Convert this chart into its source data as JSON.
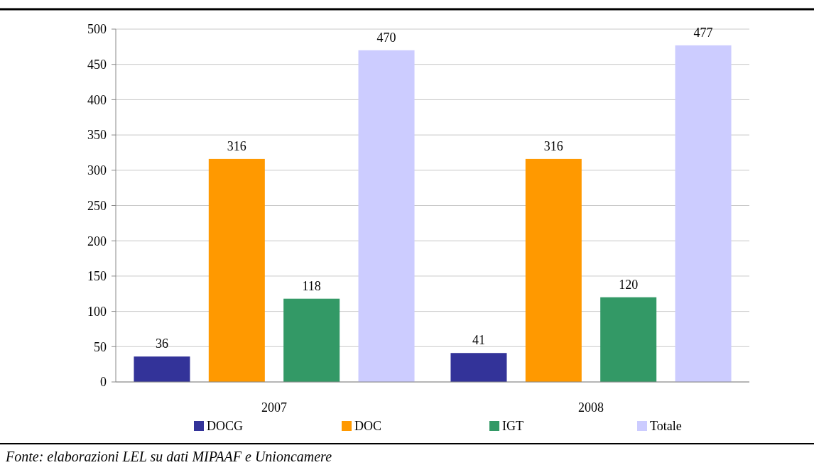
{
  "chart_data": {
    "type": "bar",
    "categories": [
      "2007",
      "2008"
    ],
    "series": [
      {
        "name": "DOCG",
        "color": "#333399",
        "values": [
          36,
          41
        ]
      },
      {
        "name": "DOC",
        "color": "#ff9900",
        "values": [
          316,
          316
        ]
      },
      {
        "name": "IGT",
        "color": "#339966",
        "values": [
          118,
          120
        ]
      },
      {
        "name": "Totale",
        "color": "#ccccff",
        "values": [
          470,
          477
        ]
      }
    ],
    "ylim": [
      0,
      500
    ],
    "yticks": [
      0,
      50,
      100,
      150,
      200,
      250,
      300,
      350,
      400,
      450,
      500
    ],
    "grid": "y",
    "legend": "bottom",
    "data_labels": true,
    "annotations": [
      "Fonte: elaborazioni LEL su dati MIPAAF e Unioncamere"
    ]
  }
}
